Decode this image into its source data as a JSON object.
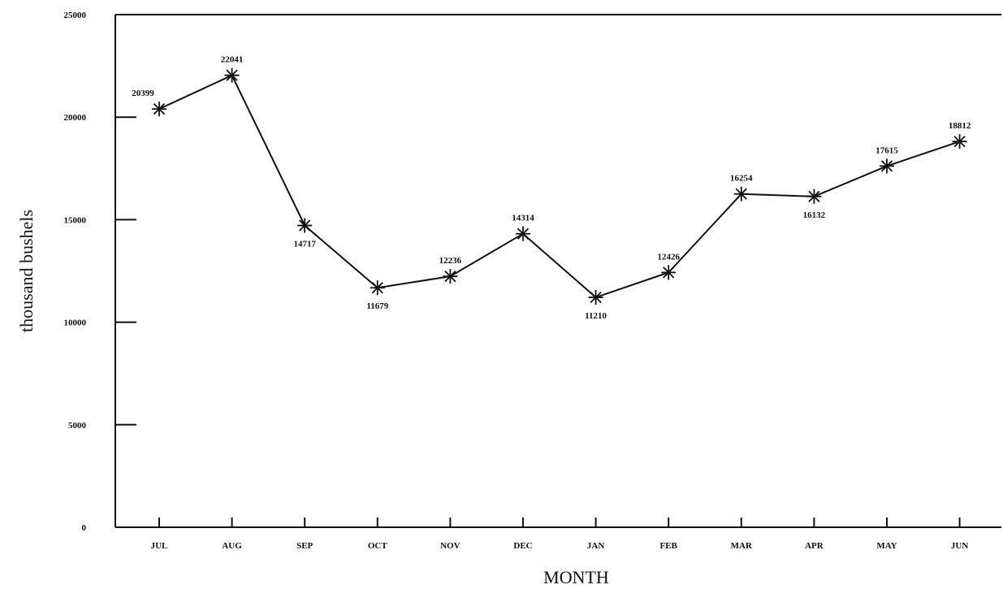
{
  "chart_data": {
    "type": "line",
    "title": "",
    "xlabel": "MONTH",
    "ylabel": "thousand bushels",
    "categories": [
      "JUL",
      "AUG",
      "SEP",
      "OCT",
      "NOV",
      "DEC",
      "JAN",
      "FEB",
      "MAR",
      "APR",
      "MAY",
      "JUN"
    ],
    "series": [
      {
        "values": [
          20399,
          22041,
          14717,
          11679,
          12236,
          14314,
          11210,
          12426,
          16254,
          16132,
          17615,
          18812
        ],
        "data_labels": [
          "20399",
          "22041",
          "14717",
          "11679",
          "12236",
          "14314",
          "11210",
          "12426",
          "16254",
          "16132",
          "17615",
          "18812"
        ]
      }
    ],
    "ylim": [
      0,
      25000
    ],
    "yticks": [
      "0",
      "5000",
      "10000",
      "15000",
      "20000",
      "25000"
    ],
    "grid": false,
    "marker": "asterisk",
    "line_color": "#111111"
  }
}
